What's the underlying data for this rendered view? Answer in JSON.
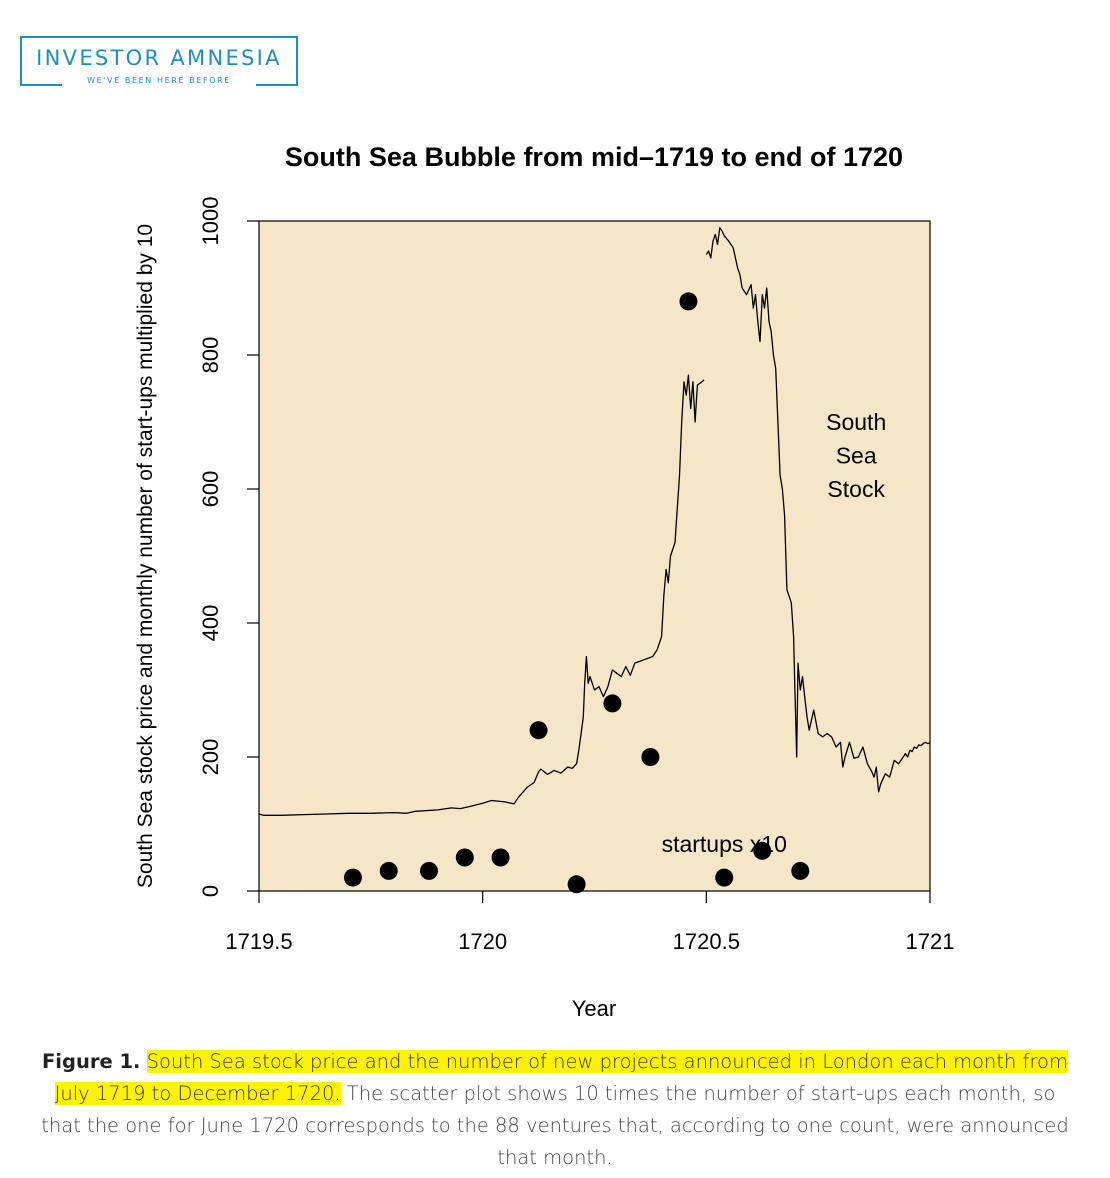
{
  "logo": {
    "title": "INVESTOR AMNESIA",
    "subtitle": "WE'VE BEEN HERE BEFORE"
  },
  "colors": {
    "brand": "#1d8fbf",
    "plot_background": "#f5e6c8",
    "highlight": "#fff200"
  },
  "chart_data": [
    {
      "type": "line",
      "title": "South Sea Bubble from mid–1719 to end of 1720",
      "xlabel": "Year",
      "ylabel": "South Sea stock price and monthly number of start-ups multiplied by 10",
      "xlim": [
        1719.5,
        1721
      ],
      "ylim": [
        0,
        1000
      ],
      "x_ticks": [
        "1719.5",
        "1720",
        "1720.5",
        "1721"
      ],
      "y_ticks": [
        "0",
        "200",
        "400",
        "600",
        "800",
        "1000"
      ],
      "series": [
        {
          "name": "South Sea Stock",
          "segments": [
            [
              [
                1719.5,
                115
              ],
              [
                1719.51,
                113
              ],
              [
                1719.55,
                113
              ],
              [
                1719.6,
                114
              ],
              [
                1719.65,
                115
              ],
              [
                1719.7,
                116
              ],
              [
                1719.75,
                116
              ],
              [
                1719.8,
                117
              ],
              [
                1719.83,
                116
              ],
              [
                1719.85,
                119
              ],
              [
                1719.9,
                121
              ],
              [
                1719.93,
                124
              ],
              [
                1719.95,
                123
              ],
              [
                1719.97,
                126
              ],
              [
                1720.0,
                131
              ],
              [
                1720.02,
                135
              ],
              [
                1720.05,
                133
              ],
              [
                1720.07,
                130
              ],
              [
                1720.08,
                140
              ],
              [
                1720.1,
                155
              ],
              [
                1720.115,
                162
              ],
              [
                1720.125,
                178
              ],
              [
                1720.13,
                182
              ],
              [
                1720.145,
                174
              ],
              [
                1720.16,
                180
              ],
              [
                1720.175,
                176
              ],
              [
                1720.19,
                185
              ],
              [
                1720.2,
                183
              ],
              [
                1720.21,
                190
              ],
              [
                1720.215,
                210
              ],
              [
                1720.22,
                235
              ],
              [
                1720.225,
                260
              ],
              [
                1720.228,
                310
              ],
              [
                1720.232,
                350
              ],
              [
                1720.236,
                310
              ],
              [
                1720.24,
                320
              ],
              [
                1720.25,
                300
              ],
              [
                1720.26,
                305
              ],
              [
                1720.27,
                290
              ],
              [
                1720.28,
                305
              ],
              [
                1720.29,
                330
              ],
              [
                1720.3,
                325
              ],
              [
                1720.31,
                320
              ],
              [
                1720.32,
                335
              ],
              [
                1720.33,
                322
              ],
              [
                1720.34,
                340
              ],
              [
                1720.36,
                345
              ],
              [
                1720.38,
                350
              ],
              [
                1720.39,
                360
              ],
              [
                1720.4,
                380
              ],
              [
                1720.405,
                440
              ],
              [
                1720.41,
                480
              ],
              [
                1720.415,
                460
              ],
              [
                1720.42,
                500
              ],
              [
                1720.43,
                520
              ],
              [
                1720.44,
                620
              ],
              [
                1720.445,
                700
              ],
              [
                1720.45,
                760
              ],
              [
                1720.455,
                740
              ],
              [
                1720.46,
                770
              ],
              [
                1720.465,
                720
              ],
              [
                1720.47,
                760
              ],
              [
                1720.475,
                700
              ],
              [
                1720.48,
                755
              ],
              [
                1720.49,
                760
              ],
              [
                1720.495,
                763
              ]
            ],
            [
              [
                1720.5,
                950
              ],
              [
                1720.505,
                955
              ],
              [
                1720.51,
                945
              ],
              [
                1720.515,
                970
              ],
              [
                1720.52,
                980
              ],
              [
                1720.525,
                965
              ],
              [
                1720.53,
                990
              ],
              [
                1720.535,
                985
              ],
              [
                1720.54,
                978
              ],
              [
                1720.55,
                970
              ],
              [
                1720.56,
                960
              ],
              [
                1720.57,
                930
              ],
              [
                1720.575,
                920
              ],
              [
                1720.58,
                900
              ],
              [
                1720.59,
                890
              ],
              [
                1720.6,
                905
              ],
              [
                1720.605,
                870
              ],
              [
                1720.61,
                890
              ],
              [
                1720.615,
                850
              ],
              [
                1720.62,
                820
              ],
              [
                1720.625,
                890
              ],
              [
                1720.63,
                870
              ],
              [
                1720.635,
                900
              ],
              [
                1720.64,
                850
              ],
              [
                1720.645,
                835
              ],
              [
                1720.65,
                800
              ],
              [
                1720.655,
                780
              ],
              [
                1720.66,
                700
              ],
              [
                1720.665,
                620
              ],
              [
                1720.67,
                600
              ],
              [
                1720.675,
                560
              ],
              [
                1720.68,
                450
              ],
              [
                1720.685,
                440
              ],
              [
                1720.69,
                430
              ],
              [
                1720.695,
                380
              ],
              [
                1720.698,
                300
              ],
              [
                1720.7,
                250
              ],
              [
                1720.702,
                200
              ],
              [
                1720.705,
                340
              ],
              [
                1720.71,
                300
              ],
              [
                1720.715,
                320
              ],
              [
                1720.72,
                290
              ],
              [
                1720.725,
                260
              ],
              [
                1720.73,
                240
              ],
              [
                1720.74,
                270
              ],
              [
                1720.75,
                235
              ],
              [
                1720.76,
                230
              ],
              [
                1720.77,
                235
              ],
              [
                1720.78,
                230
              ],
              [
                1720.79,
                215
              ],
              [
                1720.8,
                222
              ],
              [
                1720.805,
                185
              ],
              [
                1720.81,
                200
              ],
              [
                1720.82,
                222
              ],
              [
                1720.83,
                198
              ],
              [
                1720.84,
                200
              ],
              [
                1720.85,
                215
              ],
              [
                1720.86,
                190
              ],
              [
                1720.87,
                178
              ],
              [
                1720.875,
                170
              ],
              [
                1720.88,
                185
              ],
              [
                1720.885,
                148
              ],
              [
                1720.89,
                160
              ],
              [
                1720.9,
                175
              ],
              [
                1720.91,
                170
              ],
              [
                1720.92,
                195
              ],
              [
                1720.93,
                190
              ],
              [
                1720.935,
                195
              ],
              [
                1720.94,
                200
              ],
              [
                1720.945,
                205
              ],
              [
                1720.95,
                200
              ],
              [
                1720.955,
                210
              ],
              [
                1720.96,
                208
              ],
              [
                1720.965,
                215
              ],
              [
                1720.97,
                213
              ],
              [
                1720.975,
                218
              ],
              [
                1720.98,
                217
              ],
              [
                1720.985,
                220
              ],
              [
                1720.99,
                222
              ],
              [
                1720.995,
                220
              ],
              [
                1721.0,
                221
              ]
            ]
          ]
        },
        {
          "name": "startups x10",
          "type": "scatter",
          "points": [
            [
              1719.71,
              20
            ],
            [
              1719.79,
              30
            ],
            [
              1719.88,
              30
            ],
            [
              1719.96,
              50
            ],
            [
              1720.04,
              50
            ],
            [
              1720.125,
              240
            ],
            [
              1720.21,
              10
            ],
            [
              1720.29,
              280
            ],
            [
              1720.375,
              200
            ],
            [
              1720.46,
              880
            ],
            [
              1720.54,
              20
            ],
            [
              1720.625,
              60
            ],
            [
              1720.71,
              30
            ]
          ]
        }
      ],
      "annotations": [
        {
          "lines": [
            "South",
            "Sea",
            "Stock"
          ],
          "x": 1720.835,
          "y": [
            700,
            650,
            600
          ]
        },
        {
          "lines": [
            "startups x10"
          ],
          "x": 1720.54,
          "y": [
            70
          ]
        }
      ]
    }
  ],
  "caption": {
    "figure_label": "Figure 1.",
    "highlighted": "South Sea stock price and the number of new projects announced in London each month from July 1719 to December 1720.",
    "rest": "The scatter plot shows 10 times the number of start-ups each month, so that the one for June 1720 corresponds to the 88 ventures that, according to one count, were announced that month."
  }
}
